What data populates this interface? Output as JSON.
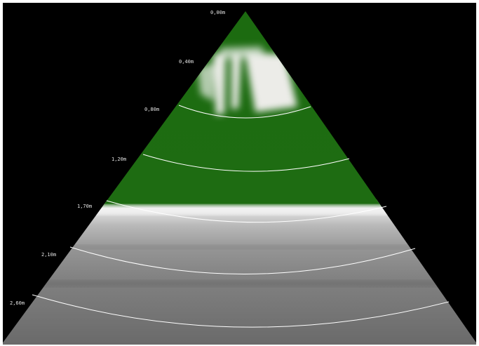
{
  "depth_labels": [
    {
      "text": "0,00m"
    },
    {
      "text": "0,40m"
    },
    {
      "text": "0,80m"
    },
    {
      "text": "1,20m"
    },
    {
      "text": "1,70m"
    },
    {
      "text": "2,10m"
    },
    {
      "text": "2,60m"
    }
  ],
  "colors": {
    "background": "#000000",
    "vegetation": "#1f6e12",
    "sediment_light": "#dcdcdc",
    "sediment_dark": "#6a6a6a",
    "depth_lines": "#ffffff"
  }
}
